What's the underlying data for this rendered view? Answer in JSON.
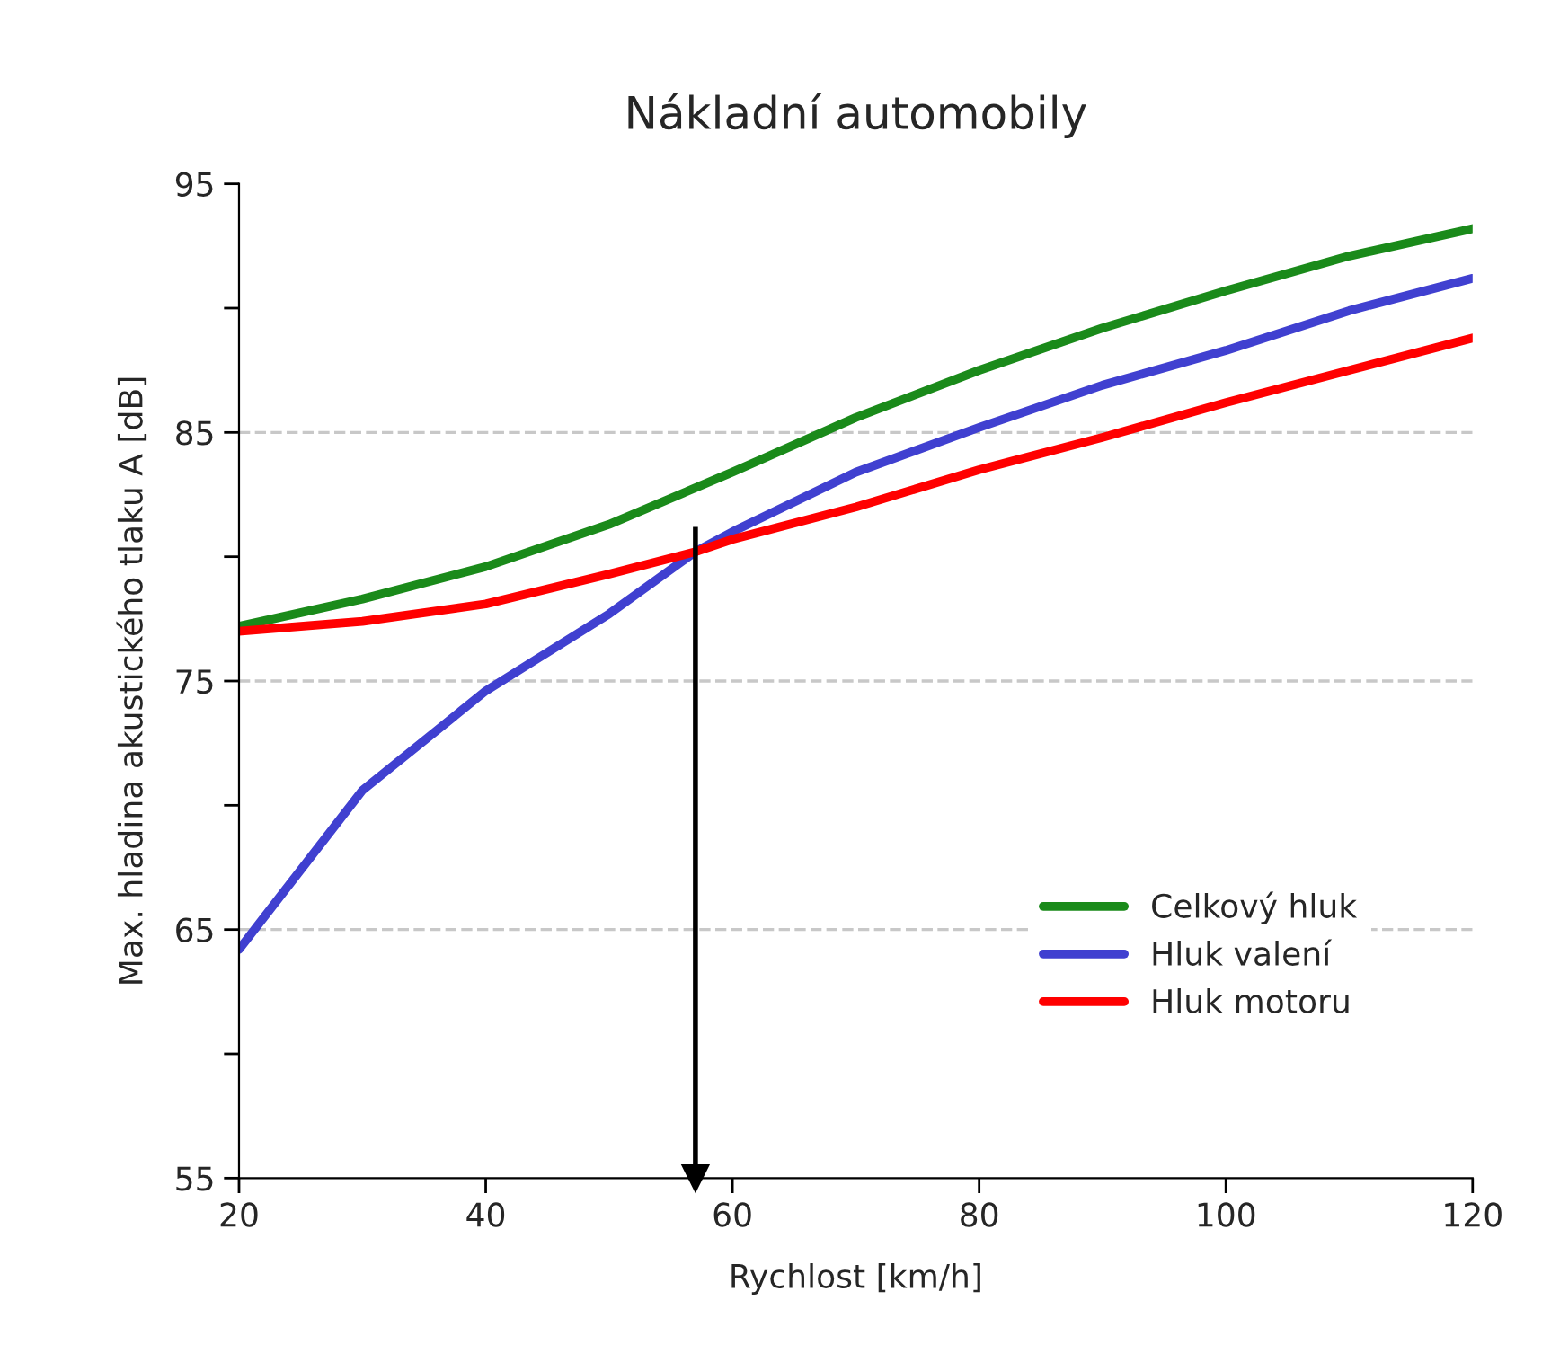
{
  "chart_data": {
    "type": "line",
    "title": "Nákladní automobily",
    "xlabel": "Rychlost [km/h]",
    "ylabel": "Max. hladina akustického tlaku A [dB]",
    "series": [
      {
        "name": "Celkový hluk",
        "color": "#1a8a1a",
        "x": [
          20,
          30,
          40,
          50,
          60,
          70,
          80,
          90,
          100,
          110,
          120
        ],
        "values": [
          77.2,
          78.3,
          79.6,
          81.3,
          83.4,
          85.6,
          87.5,
          89.2,
          90.7,
          92.1,
          93.2
        ]
      },
      {
        "name": "Hluk valení",
        "color": "#4040d0",
        "x": [
          20,
          30,
          40,
          50,
          57,
          60,
          70,
          80,
          90,
          100,
          110,
          120
        ],
        "values": [
          64.2,
          70.6,
          74.6,
          77.7,
          80.2,
          81.0,
          83.4,
          85.2,
          86.9,
          88.3,
          89.9,
          91.2
        ]
      },
      {
        "name": "Hluk motoru",
        "color": "#ff0000",
        "x": [
          20,
          30,
          40,
          50,
          57,
          60,
          70,
          80,
          90,
          100,
          110,
          120
        ],
        "values": [
          77.0,
          77.4,
          78.1,
          79.3,
          80.2,
          80.7,
          82.0,
          83.5,
          84.8,
          86.2,
          87.5,
          88.8
        ]
      }
    ],
    "xlim": [
      20,
      120
    ],
    "xticks": [
      20,
      40,
      60,
      80,
      100,
      120
    ],
    "ylim": [
      55,
      95
    ],
    "yticks": [
      55,
      {
        "value": 60,
        "label": null
      },
      65,
      {
        "value": 70,
        "label": null
      },
      75,
      {
        "value": 80,
        "label": null
      },
      85,
      {
        "value": 90,
        "label": null
      },
      95
    ],
    "ref_lines": [
      {
        "axis": "y",
        "value": 65,
        "color": "#c8c8c8",
        "line_style": "dashed"
      },
      {
        "axis": "y",
        "value": 75,
        "color": "#c8c8c8",
        "line_style": "dashed"
      },
      {
        "axis": "y",
        "value": 85,
        "color": "#c8c8c8",
        "line_style": "dashed"
      },
      {
        "axis": "x",
        "value": 57,
        "color": "#000000",
        "line_style": "solid"
      }
    ],
    "legend": "bottom right",
    "grid": false,
    "marker": "none",
    "line_style": "solid"
  }
}
